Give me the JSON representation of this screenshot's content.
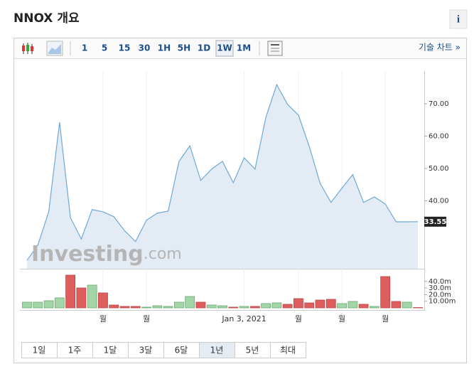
{
  "header": {
    "title": "NNOX 개요",
    "info_button": "i"
  },
  "toolbar": {
    "intervals": [
      "1",
      "5",
      "15",
      "30",
      "1H",
      "5H",
      "1D",
      "1W",
      "1M"
    ],
    "selected_interval": 7,
    "technical_link": "기술 차트 »"
  },
  "range_buttons": {
    "labels": [
      "1일",
      "1주",
      "1달",
      "3달",
      "6달",
      "1년",
      "5년",
      "최대"
    ],
    "selected": 5
  },
  "watermark": [
    "Investing",
    ".com"
  ],
  "chart_data": {
    "type": "area",
    "categories": [
      null,
      null,
      null,
      null,
      null,
      null,
      null,
      "월",
      null,
      null,
      null,
      "월",
      null,
      null,
      null,
      null,
      null,
      null,
      null,
      null,
      "Jan 3, 2021",
      null,
      null,
      null,
      null,
      "월",
      null,
      null,
      null,
      "월",
      null,
      null,
      null,
      "월",
      null,
      null,
      null
    ],
    "values": [
      21.6,
      26.3,
      36.6,
      64.3,
      34.8,
      28.2,
      37.3,
      36.6,
      35.1,
      30.7,
      27.4,
      34.0,
      36.2,
      36.8,
      52.2,
      57.0,
      46.3,
      49.8,
      52.2,
      45.6,
      53.3,
      49.8,
      65.8,
      75.9,
      69.8,
      66.5,
      56.8,
      45.4,
      39.5,
      43.9,
      48.1,
      39.5,
      41.2,
      39.0,
      33.5,
      33.5,
      33.55
    ],
    "value_labels": [
      null,
      null,
      null,
      null,
      null,
      null,
      null,
      null,
      null,
      null,
      null,
      null,
      null,
      null,
      null,
      null,
      null,
      null,
      null,
      null,
      null,
      null,
      null,
      null,
      null,
      null,
      null,
      null,
      null,
      null,
      null,
      null,
      null,
      null,
      null,
      null,
      "33.55"
    ],
    "color": "#6fa8d6",
    "fill": "#e3ecf5",
    "ylim": [
      19,
      79
    ],
    "yticks": [
      {
        "value": 40,
        "label": "40.00"
      },
      {
        "value": 50,
        "label": "50.00"
      },
      {
        "value": 60,
        "label": "60.00"
      },
      {
        "value": 70,
        "label": "70.00"
      }
    ],
    "volume": [
      8.6,
      8.6,
      10.8,
      15.1,
      49.5,
      30.1,
      34.4,
      22.6,
      4.3,
      2.2,
      2.2,
      1.1,
      3.2,
      2.2,
      8.6,
      17.2,
      8.6,
      4.3,
      3.2,
      1.1,
      2.2,
      2.2,
      6.5,
      7.5,
      5.4,
      14.0,
      7.5,
      11.8,
      12.9,
      6.5,
      9.7,
      5.4,
      2.2,
      47.3,
      9.7,
      8.6,
      0.5
    ],
    "volume_colors": [
      "#a3d6a7",
      "#a3d6a7",
      "#a3d6a7",
      "#a3d6a7",
      "#de5e5e",
      "#de5e5e",
      "#a3d6a7",
      "#de5e5e",
      "#de5e5e",
      "#de5e5e",
      "#de5e5e",
      "#a3d6a7",
      "#a3d6a7",
      "#a3d6a7",
      "#a3d6a7",
      "#a3d6a7",
      "#de5e5e",
      "#a3d6a7",
      "#a3d6a7",
      "#de5e5e",
      "#a3d6a7",
      "#de5e5e",
      "#a3d6a7",
      "#a3d6a7",
      "#de5e5e",
      "#de5e5e",
      "#de5e5e",
      "#de5e5e",
      "#de5e5e",
      "#a3d6a7",
      "#a3d6a7",
      "#de5e5e",
      "#a3d6a7",
      "#de5e5e",
      "#de5e5e",
      "#a3d6a7",
      "#de5e5e"
    ],
    "y2lim": [
      0,
      50
    ],
    "y2ticks": [
      {
        "value": 10,
        "label": "10.00m"
      },
      {
        "value": 20,
        "label": "20.0m"
      },
      {
        "value": 30,
        "label": "30.0m"
      },
      {
        "value": 40,
        "label": "40.0m"
      }
    ]
  }
}
